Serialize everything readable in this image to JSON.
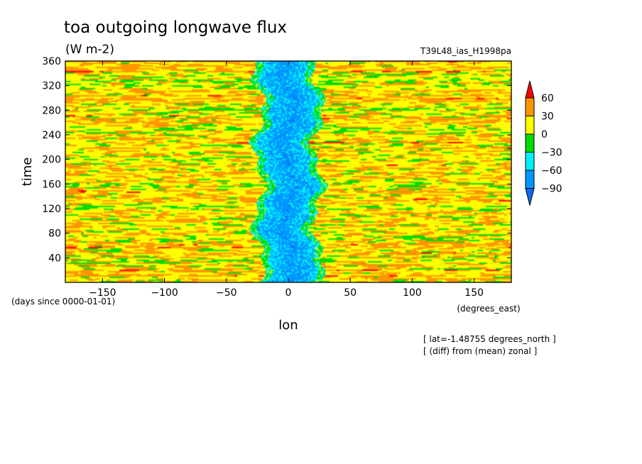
{
  "chart_data": {
    "type": "heatmap",
    "title": "toa outgoing longwave flux",
    "units": "(W m-2)",
    "run_label": "T39L48_ias_H1998pa",
    "xlabel": "lon",
    "x_units": "(degrees_east)",
    "ylabel": "time",
    "y_units": "(days since 0000-01-01)",
    "xlim": [
      -180,
      180
    ],
    "ylim": [
      0,
      360
    ],
    "x_ticks": [
      -150,
      -100,
      -50,
      0,
      50,
      100,
      150
    ],
    "x_tick_labels": [
      "−150",
      "−100",
      "−50",
      "0",
      "50",
      "100",
      "150"
    ],
    "y_ticks": [
      40,
      80,
      120,
      160,
      200,
      240,
      280,
      320,
      360
    ],
    "y_tick_labels": [
      "40",
      "80",
      "120",
      "160",
      "200",
      "240",
      "280",
      "320",
      "360"
    ],
    "colorbar": {
      "levels": [
        -90,
        -60,
        -30,
        0,
        30,
        60
      ],
      "labels": [
        "−90",
        "−60",
        "−30",
        "0",
        "30",
        "60"
      ],
      "colors": [
        "#0c6cf0",
        "#0096ff",
        "#00f0ff",
        "#00dc00",
        "#ffff00",
        "#ff9600",
        "#ff0000"
      ],
      "extend": "both"
    },
    "pattern": {
      "description_of_field": "banded noisy field, strong negative anomaly band centered near lon 0",
      "deep_band_center_lon": 0,
      "deep_band_halfwidth_deg": 18
    },
    "annotations": [
      "[ lat=-1.48755 degrees_north ]",
      "[ (diff) from (mean) zonal ]"
    ]
  },
  "colors": {
    "background": "#ffffff",
    "axis": "#000000"
  }
}
